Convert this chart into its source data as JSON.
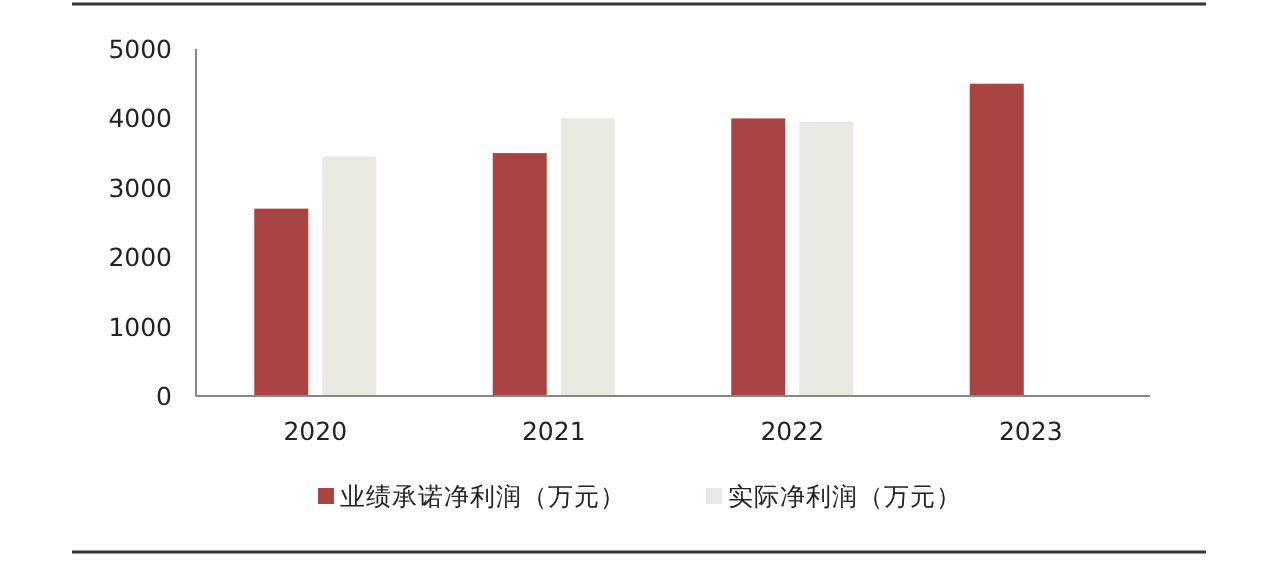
{
  "chart_data": {
    "type": "bar",
    "categories": [
      "2020",
      "2021",
      "2022",
      "2023"
    ],
    "series": [
      {
        "name": "业绩承诺净利润（万元）",
        "color": "#a94442",
        "values": [
          2700,
          3500,
          4000,
          4500
        ]
      },
      {
        "name": "实际净利润（万元）",
        "color": "#ebe8df",
        "values": [
          3450,
          4000,
          3950,
          null
        ]
      }
    ],
    "ylim": [
      0,
      5000
    ],
    "yticks": [
      0,
      1000,
      2000,
      3000,
      4000,
      5000
    ],
    "legend": "bottom"
  }
}
